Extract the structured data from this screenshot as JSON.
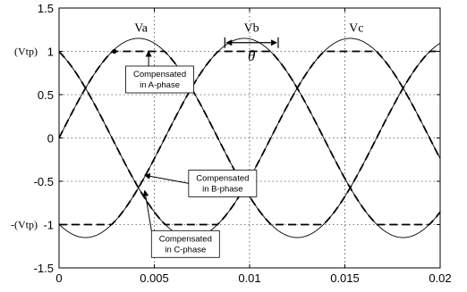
{
  "chart_data": {
    "type": "line",
    "title": "",
    "xlabel": "",
    "ylabel": "",
    "xlim": [
      0,
      0.02
    ],
    "ylim": [
      -1.5,
      1.5
    ],
    "grid": true,
    "x_ticks": [
      "0",
      "0.005",
      "0.01",
      "0.015",
      "0.02"
    ],
    "y_ticks": [
      "1.5",
      "1",
      "0.5",
      "0",
      "-0.5",
      "-1",
      "-1.5"
    ],
    "y_tick_prefixes": {
      "1": "(Vtp)",
      "-1": "-(Vtp)"
    },
    "sine_series": [
      {
        "name": "Va",
        "amplitude": 1.15,
        "frequency_hz": 60,
        "phase_deg": 0,
        "style": "solid"
      },
      {
        "name": "Vb",
        "amplitude": 1.15,
        "frequency_hz": 60,
        "phase_deg": -120,
        "style": "solid"
      },
      {
        "name": "Vc",
        "amplitude": 1.15,
        "frequency_hz": 60,
        "phase_deg": 120,
        "style": "solid"
      }
    ],
    "clip_level": 1.0,
    "compensated_style": "dashed",
    "curve_labels": [
      {
        "text": "Va",
        "x": 0.0043,
        "y": 1.28
      },
      {
        "text": "Vb",
        "x": 0.0101,
        "y": 1.28
      },
      {
        "text": "Vc",
        "x": 0.0156,
        "y": 1.28
      }
    ],
    "theta": {
      "symbol": "θ",
      "x_start": 0.0087,
      "x_end": 0.0115,
      "y": 1.1
    },
    "annotations": [
      {
        "lines": [
          "Compensated",
          "in A-phase"
        ],
        "box_x": 0.0035,
        "box_y": 0.83,
        "arrow_to": {
          "x": 0.0047,
          "y": 1.0
        }
      },
      {
        "lines": [
          "Compensated",
          "in B-phase"
        ],
        "box_x": 0.0068,
        "box_y": -0.37,
        "arrow_to": {
          "x": 0.0045,
          "y": -0.43
        }
      },
      {
        "lines": [
          "Compensated",
          "in C-phase"
        ],
        "box_x": 0.00485,
        "box_y": -1.07,
        "arrow_to": {
          "x": 0.0045,
          "y": -0.61
        }
      }
    ],
    "marker_point": {
      "x": 0.0029,
      "y": 1.0
    }
  }
}
